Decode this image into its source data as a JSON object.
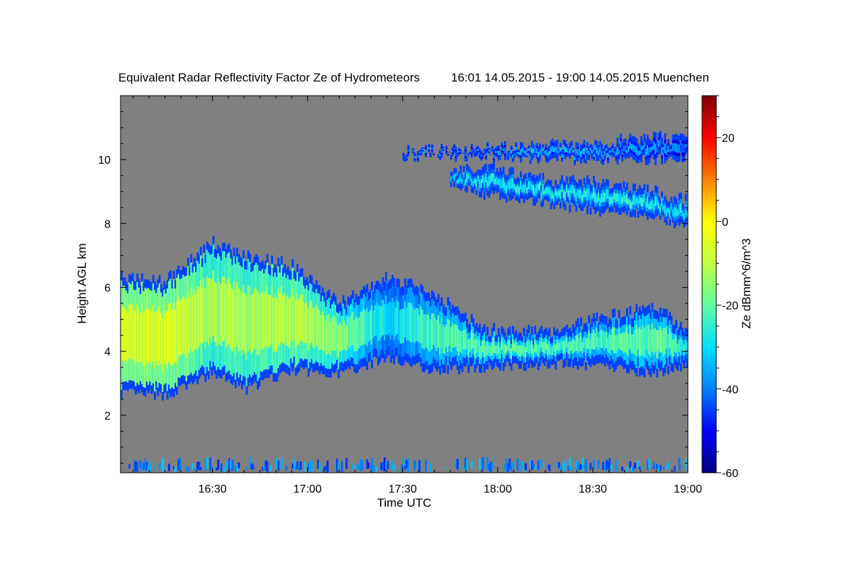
{
  "chart_data": {
    "type": "heatmap",
    "title": "Equivalent Radar Reflectivity Factor Ze of Hydrometeors",
    "subtitle": "16:01 14.05.2015 - 19:00 14.05.2015 Muenchen",
    "xlabel": "Time UTC",
    "ylabel": "Height AGL km",
    "colorbar_label": "Ze dBmm^6/m^3",
    "x_range": [
      "16:01",
      "19:00"
    ],
    "x_ticks": [
      "16:30",
      "17:00",
      "17:30",
      "18:00",
      "18:30",
      "19:00"
    ],
    "y_range": [
      0.2,
      12.0
    ],
    "y_ticks": [
      "2",
      "4",
      "6",
      "8",
      "10"
    ],
    "colorbar_range": [
      -60,
      30
    ],
    "colorbar_ticks": [
      "20",
      "0",
      "-20",
      "-40",
      "-60"
    ],
    "background_color": "#808080",
    "colormap": [
      "#00007f",
      "#0000ff",
      "#0080ff",
      "#00e0ff",
      "#60ffa0",
      "#c0ff40",
      "#ffff00",
      "#ff8000",
      "#ff0000",
      "#7f0000"
    ],
    "layers": [
      {
        "name": "lower cloud",
        "time_start": "16:01",
        "time_end": "19:00",
        "profile": [
          {
            "t": "16:01",
            "base": 2.7,
            "top": 6.3,
            "ze": -5
          },
          {
            "t": "16:15",
            "base": 2.6,
            "top": 6.2,
            "ze": -5
          },
          {
            "t": "16:30",
            "base": 3.3,
            "top": 7.4,
            "ze": -12
          },
          {
            "t": "16:40",
            "base": 2.8,
            "top": 7.0,
            "ze": -12
          },
          {
            "t": "16:55",
            "base": 3.4,
            "top": 6.7,
            "ze": -10
          },
          {
            "t": "17:10",
            "base": 3.3,
            "top": 5.5,
            "ze": -15
          },
          {
            "t": "17:25",
            "base": 3.8,
            "top": 6.3,
            "ze": -30
          },
          {
            "t": "17:40",
            "base": 3.4,
            "top": 5.8,
            "ze": -22
          },
          {
            "t": "17:55",
            "base": 3.5,
            "top": 4.7,
            "ze": -20
          },
          {
            "t": "18:15",
            "base": 3.6,
            "top": 4.6,
            "ze": -22
          },
          {
            "t": "18:35",
            "base": 3.5,
            "top": 5.1,
            "ze": -22
          },
          {
            "t": "18:50",
            "base": 3.3,
            "top": 5.4,
            "ze": -20
          },
          {
            "t": "19:00",
            "base": 3.6,
            "top": 4.6,
            "ze": -25
          }
        ]
      },
      {
        "name": "upper cloud",
        "time_start": "17:45",
        "time_end": "19:00",
        "profile": [
          {
            "t": "17:45",
            "base": 9.3,
            "top": 9.6,
            "ze": -32
          },
          {
            "t": "17:55",
            "base": 8.9,
            "top": 9.8,
            "ze": -28
          },
          {
            "t": "18:10",
            "base": 8.7,
            "top": 9.4,
            "ze": -28
          },
          {
            "t": "18:30",
            "base": 8.4,
            "top": 9.3,
            "ze": -27
          },
          {
            "t": "18:45",
            "base": 8.3,
            "top": 9.1,
            "ze": -27
          },
          {
            "t": "19:00",
            "base": 7.9,
            "top": 8.7,
            "ze": -28
          }
        ]
      },
      {
        "name": "high cirrus",
        "time_start": "17:30",
        "time_end": "19:00",
        "profile": [
          {
            "t": "17:30",
            "base": 10.1,
            "top": 10.3,
            "ze": -40
          },
          {
            "t": "17:50",
            "base": 10.1,
            "top": 10.3,
            "ze": -40
          },
          {
            "t": "18:10",
            "base": 10.0,
            "top": 10.4,
            "ze": -35
          },
          {
            "t": "18:30",
            "base": 10.0,
            "top": 10.5,
            "ze": -35
          },
          {
            "t": "18:50",
            "base": 10.0,
            "top": 10.7,
            "ze": -38
          },
          {
            "t": "19:00",
            "base": 10.1,
            "top": 10.6,
            "ze": -40
          }
        ]
      },
      {
        "name": "near-ground clutter",
        "time_start": "16:01",
        "time_end": "19:00",
        "profile": [
          {
            "t": "16:01",
            "base": 0.2,
            "top": 0.5,
            "ze": -40
          },
          {
            "t": "19:00",
            "base": 0.2,
            "top": 0.5,
            "ze": -40
          }
        ]
      }
    ]
  }
}
